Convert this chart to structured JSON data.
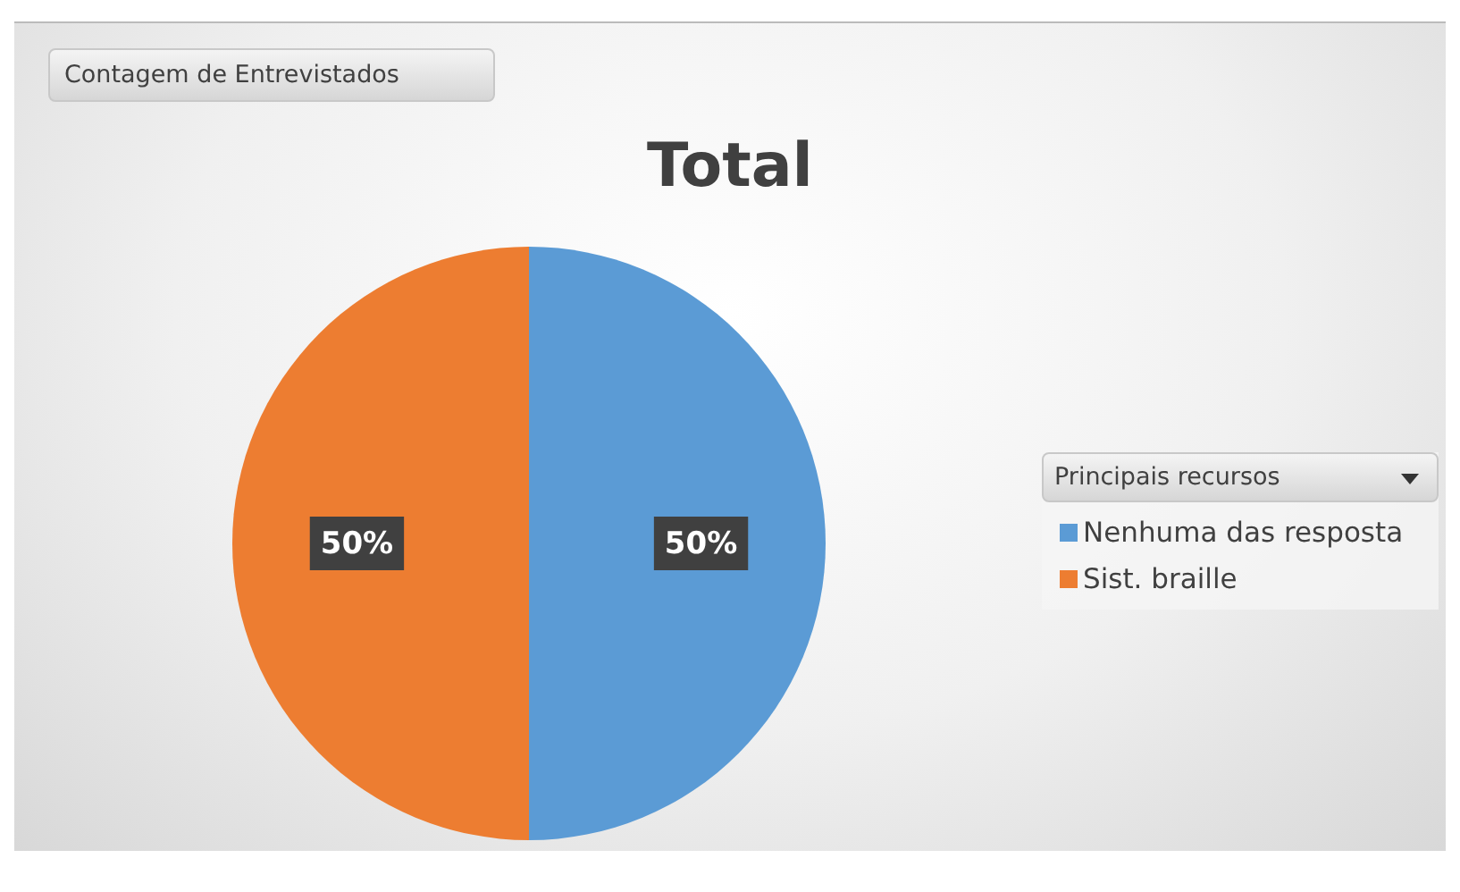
{
  "chart_data": {
    "type": "pie",
    "title": "Total",
    "annotations": [
      "Contagem de Entrevistados"
    ],
    "legend_title": "Principais recursos",
    "legend": "right",
    "categories": [
      "Nenhuma das resposta",
      "Sist. braille"
    ],
    "values": [
      50,
      50
    ],
    "value_labels": [
      "50%",
      "50%"
    ],
    "colors": [
      "#5b9bd5",
      "#ed7d31"
    ]
  }
}
